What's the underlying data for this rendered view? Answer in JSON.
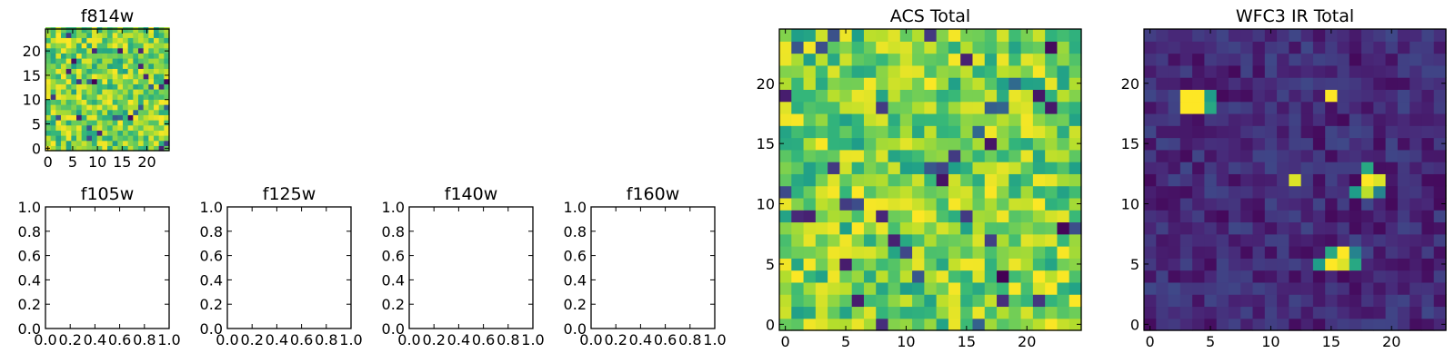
{
  "chart_data": [
    {
      "id": "f814w",
      "type": "heatmap",
      "title": "f814w",
      "cmap": "viridis",
      "grid": 24,
      "xlim": [
        -0.5,
        24.5
      ],
      "ylim": [
        -0.5,
        24.5
      ],
      "xticks": [
        0,
        5,
        10,
        15,
        20
      ],
      "yticks": [
        0,
        5,
        10,
        15,
        20
      ],
      "xticklabels": [
        "0",
        "5",
        "10",
        "15",
        "20"
      ],
      "yticklabels": [
        "0",
        "5",
        "10",
        "15",
        "20"
      ],
      "pattern": "noise",
      "value_range": [
        0,
        1
      ]
    },
    {
      "id": "f105w",
      "type": "empty",
      "title": "f105w",
      "xlim": [
        0,
        1
      ],
      "ylim": [
        0,
        1
      ],
      "xticks": [
        0,
        0.2,
        0.4,
        0.6,
        0.8,
        1.0
      ],
      "yticks": [
        0,
        0.2,
        0.4,
        0.6,
        0.8,
        1.0
      ],
      "xticklabels": [
        "0.0",
        "0.2",
        "0.4",
        "0.6",
        "0.8",
        "1.0"
      ],
      "yticklabels": [
        "0.0",
        "0.2",
        "0.4",
        "0.6",
        "0.8",
        "1.0"
      ]
    },
    {
      "id": "f125w",
      "type": "empty",
      "title": "f125w",
      "xlim": [
        0,
        1
      ],
      "ylim": [
        0,
        1
      ],
      "xticks": [
        0,
        0.2,
        0.4,
        0.6,
        0.8,
        1.0
      ],
      "yticks": [
        0,
        0.2,
        0.4,
        0.6,
        0.8,
        1.0
      ],
      "xticklabels": [
        "0.0",
        "0.2",
        "0.4",
        "0.6",
        "0.8",
        "1.0"
      ],
      "yticklabels": [
        "0.0",
        "0.2",
        "0.4",
        "0.6",
        "0.8",
        "1.0"
      ]
    },
    {
      "id": "f140w",
      "type": "empty",
      "title": "f140w",
      "xlim": [
        0,
        1
      ],
      "ylim": [
        0,
        1
      ],
      "xticks": [
        0,
        0.2,
        0.4,
        0.6,
        0.8,
        1.0
      ],
      "yticks": [
        0,
        0.2,
        0.4,
        0.6,
        0.8,
        1.0
      ],
      "xticklabels": [
        "0.0",
        "0.2",
        "0.4",
        "0.6",
        "0.8",
        "1.0"
      ],
      "yticklabels": [
        "0.0",
        "0.2",
        "0.4",
        "0.6",
        "0.8",
        "1.0"
      ]
    },
    {
      "id": "f160w",
      "type": "empty",
      "title": "f160w",
      "xlim": [
        0,
        1
      ],
      "ylim": [
        0,
        1
      ],
      "xticks": [
        0,
        0.2,
        0.4,
        0.6,
        0.8,
        1.0
      ],
      "yticks": [
        0,
        0.2,
        0.4,
        0.6,
        0.8,
        1.0
      ],
      "xticklabels": [
        "0.0",
        "0.2",
        "0.4",
        "0.6",
        "0.8",
        "1.0"
      ],
      "yticklabels": [
        "0.0",
        "0.2",
        "0.4",
        "0.6",
        "0.8",
        "1.0"
      ]
    },
    {
      "id": "acs-total",
      "type": "heatmap",
      "title": "ACS Total",
      "cmap": "viridis",
      "grid": 25,
      "xlim": [
        -0.5,
        24.5
      ],
      "ylim": [
        -0.5,
        24.5
      ],
      "xticks": [
        0,
        5,
        10,
        15,
        20
      ],
      "yticks": [
        0,
        5,
        10,
        15,
        20
      ],
      "xticklabels": [
        "0",
        "5",
        "10",
        "15",
        "20"
      ],
      "yticklabels": [
        "0",
        "5",
        "10",
        "15",
        "20"
      ],
      "pattern": "noise",
      "value_range": [
        0,
        1
      ]
    },
    {
      "id": "wfc3-ir-total",
      "type": "heatmap",
      "title": "WFC3 IR Total",
      "cmap": "viridis",
      "grid": 25,
      "xlim": [
        -0.5,
        24.5
      ],
      "ylim": [
        -0.5,
        24.5
      ],
      "xticks": [
        0,
        5,
        10,
        15,
        20
      ],
      "yticks": [
        0,
        5,
        10,
        15,
        20
      ],
      "xticklabels": [
        "0",
        "5",
        "10",
        "15",
        "20"
      ],
      "yticklabels": [
        "0",
        "5",
        "10",
        "15",
        "20"
      ],
      "pattern": "sources",
      "background": 0.12,
      "sources": [
        {
          "x": 3,
          "y": 18,
          "value": 1.0
        },
        {
          "x": 4,
          "y": 18,
          "value": 1.0
        },
        {
          "x": 3,
          "y": 19,
          "value": 1.0
        },
        {
          "x": 4,
          "y": 19,
          "value": 1.0
        },
        {
          "x": 5,
          "y": 18,
          "value": 0.6
        },
        {
          "x": 5,
          "y": 19,
          "value": 0.55
        },
        {
          "x": 15,
          "y": 19,
          "value": 1.0
        },
        {
          "x": 12,
          "y": 12,
          "value": 0.95
        },
        {
          "x": 18,
          "y": 12,
          "value": 1.0
        },
        {
          "x": 19,
          "y": 12,
          "value": 0.95
        },
        {
          "x": 18,
          "y": 11,
          "value": 0.9
        },
        {
          "x": 17,
          "y": 11,
          "value": 0.55
        },
        {
          "x": 18,
          "y": 13,
          "value": 0.6
        },
        {
          "x": 19,
          "y": 11,
          "value": 0.45
        },
        {
          "x": 15,
          "y": 5,
          "value": 1.0
        },
        {
          "x": 16,
          "y": 5,
          "value": 0.95
        },
        {
          "x": 16,
          "y": 6,
          "value": 1.0
        },
        {
          "x": 15,
          "y": 6,
          "value": 0.6
        },
        {
          "x": 14,
          "y": 5,
          "value": 0.55
        },
        {
          "x": 17,
          "y": 5,
          "value": 0.6
        },
        {
          "x": 17,
          "y": 6,
          "value": 0.45
        }
      ]
    }
  ]
}
